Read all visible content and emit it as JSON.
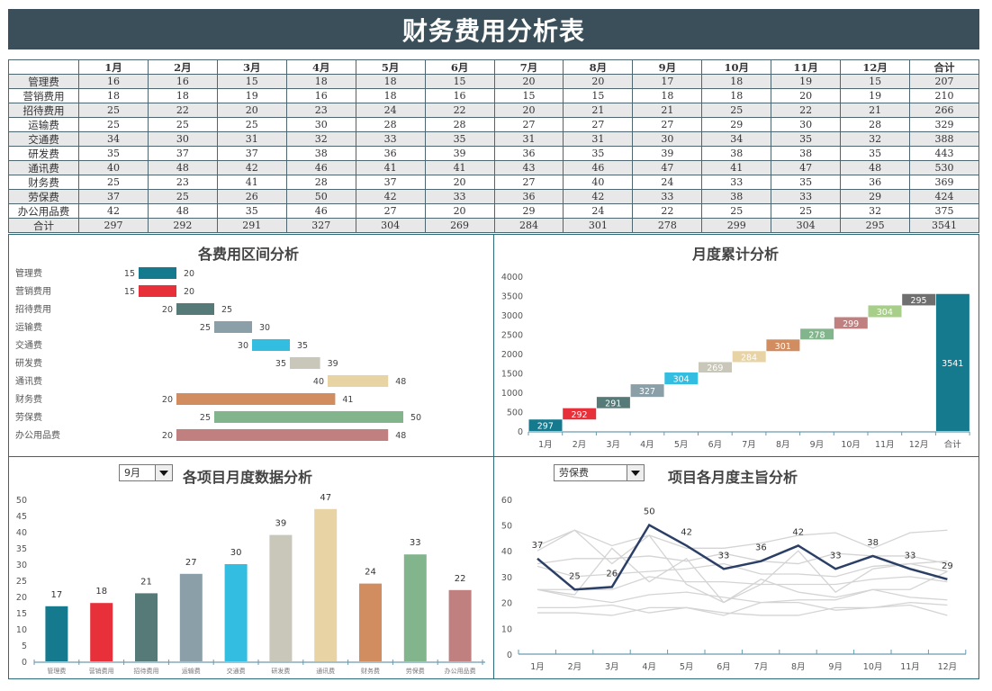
{
  "title": "财务费用分析表",
  "table": {
    "headers": [
      "",
      "1月",
      "2月",
      "3月",
      "4月",
      "5月",
      "6月",
      "7月",
      "8月",
      "9月",
      "10月",
      "11月",
      "12月",
      "合计"
    ],
    "rows": [
      {
        "label": "管理费",
        "values": [
          16,
          16,
          15,
          18,
          18,
          15,
          20,
          20,
          17,
          18,
          19,
          15,
          207
        ]
      },
      {
        "label": "营销费用",
        "values": [
          18,
          18,
          19,
          16,
          18,
          16,
          15,
          15,
          18,
          18,
          20,
          19,
          210
        ]
      },
      {
        "label": "招待费用",
        "values": [
          25,
          22,
          20,
          23,
          24,
          22,
          20,
          21,
          21,
          25,
          22,
          21,
          266
        ]
      },
      {
        "label": "运输费",
        "values": [
          25,
          25,
          25,
          30,
          28,
          28,
          27,
          27,
          27,
          29,
          30,
          28,
          329
        ]
      },
      {
        "label": "交通费",
        "values": [
          34,
          30,
          31,
          32,
          33,
          35,
          31,
          31,
          30,
          34,
          35,
          32,
          388
        ]
      },
      {
        "label": "研发费",
        "values": [
          35,
          37,
          37,
          38,
          36,
          39,
          36,
          35,
          39,
          38,
          38,
          35,
          443
        ]
      },
      {
        "label": "通讯费",
        "values": [
          40,
          48,
          42,
          46,
          41,
          41,
          43,
          46,
          47,
          41,
          47,
          48,
          530
        ]
      },
      {
        "label": "财务费",
        "values": [
          25,
          23,
          41,
          28,
          37,
          20,
          27,
          40,
          24,
          33,
          35,
          36,
          369
        ]
      },
      {
        "label": "劳保费",
        "values": [
          37,
          25,
          26,
          50,
          42,
          33,
          36,
          42,
          33,
          38,
          33,
          29,
          424
        ]
      },
      {
        "label": "办公用品费",
        "values": [
          42,
          48,
          35,
          46,
          27,
          20,
          29,
          24,
          22,
          25,
          25,
          32,
          375
        ]
      },
      {
        "label": "合计",
        "values": [
          297,
          292,
          291,
          327,
          304,
          269,
          284,
          301,
          278,
          299,
          304,
          295,
          3541
        ]
      }
    ]
  },
  "colors": {
    "title_bg": "#3a4f59",
    "series": [
      "#167a8f",
      "#e8303a",
      "#557a78",
      "#8a9fa8",
      "#33bde0",
      "#c8c7b9",
      "#e8d3a5",
      "#d18d60",
      "#82b58c",
      "#bf807f"
    ],
    "waterfall_extra": [
      "#bf807f",
      "#a8cf8a",
      "#6f6f6f"
    ],
    "total": "#167a8f",
    "highlight_line": "#2b3f66",
    "grey_line": "#d4d4d4"
  },
  "charts": {
    "range": {
      "title": "各费用区间分析"
    },
    "waterfall": {
      "title": "月度累计分析"
    },
    "month_bar": {
      "title": "各项目月度数据分析",
      "selector": {
        "value": "9月"
      }
    },
    "item_line": {
      "title": "项目各月度主旨分析",
      "selector": {
        "value": "劳保费"
      }
    }
  },
  "chart_data": [
    {
      "type": "bar",
      "title": "各费用区间分析",
      "orientation": "horizontal-floating",
      "categories": [
        "管理费",
        "营销费用",
        "招待费用",
        "运输费",
        "交通费",
        "研发费",
        "通讯费",
        "财务费",
        "劳保费",
        "办公用品费"
      ],
      "series": [
        {
          "name": "min",
          "values": [
            15,
            15,
            20,
            25,
            30,
            35,
            40,
            20,
            25,
            20
          ]
        },
        {
          "name": "max",
          "values": [
            20,
            20,
            25,
            30,
            35,
            39,
            48,
            41,
            50,
            48
          ]
        }
      ]
    },
    {
      "type": "bar",
      "subtype": "waterfall",
      "title": "月度累计分析",
      "categories": [
        "1月",
        "2月",
        "3月",
        "4月",
        "5月",
        "6月",
        "7月",
        "8月",
        "9月",
        "10月",
        "11月",
        "12月",
        "合计"
      ],
      "values": [
        297,
        292,
        291,
        327,
        304,
        269,
        284,
        301,
        278,
        299,
        304,
        295,
        3541
      ],
      "ylim": [
        0,
        4000
      ],
      "yticks": [
        0,
        500,
        1000,
        1500,
        2000,
        2500,
        3000,
        3500,
        4000
      ]
    },
    {
      "type": "bar",
      "title": "各项目月度数据分析",
      "selected_month": "9月",
      "categories": [
        "管理费",
        "营销费用",
        "招待费用",
        "运输费",
        "交通费",
        "研发费",
        "通讯费",
        "财务费",
        "劳保费",
        "办公用品费"
      ],
      "values": [
        17,
        18,
        21,
        27,
        30,
        39,
        47,
        24,
        33,
        22
      ],
      "ylim": [
        0,
        50
      ],
      "yticks": [
        0,
        5,
        10,
        15,
        20,
        25,
        30,
        35,
        40,
        45,
        50
      ]
    },
    {
      "type": "line",
      "title": "项目各月度主旨分析",
      "selected_item": "劳保费",
      "x": [
        "1月",
        "2月",
        "3月",
        "4月",
        "5月",
        "6月",
        "7月",
        "8月",
        "9月",
        "10月",
        "11月",
        "12月"
      ],
      "highlight": {
        "name": "劳保费",
        "values": [
          37,
          25,
          26,
          50,
          42,
          33,
          36,
          42,
          33,
          38,
          33,
          29
        ]
      },
      "background_series": "all other expense rows from table",
      "ylim": [
        0,
        60
      ],
      "yticks": [
        0,
        10,
        20,
        30,
        40,
        50,
        60
      ]
    }
  ]
}
